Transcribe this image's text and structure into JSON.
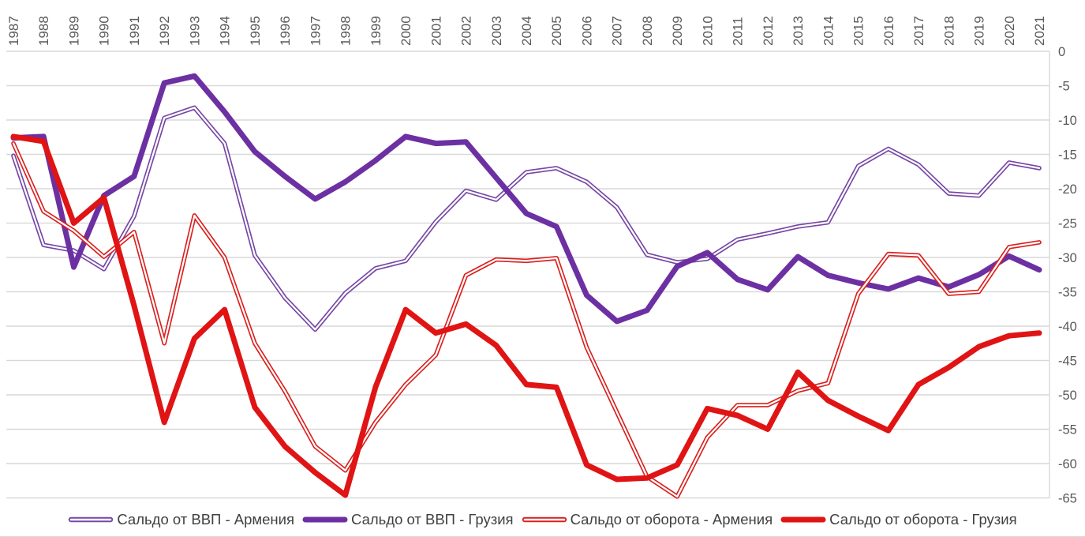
{
  "chart_data": {
    "type": "line",
    "title": "",
    "x": [
      1987,
      1988,
      1989,
      1990,
      1991,
      1992,
      1993,
      1994,
      1995,
      1996,
      1997,
      1998,
      1999,
      2000,
      2001,
      2002,
      2003,
      2004,
      2005,
      2006,
      2007,
      2008,
      2009,
      2010,
      2011,
      2012,
      2013,
      2014,
      2015,
      2016,
      2017,
      2018,
      2019,
      2020,
      2021
    ],
    "series": [
      {
        "name": "Сальдо от ВВП - Армения",
        "color": "#7646A4",
        "line_style": "thin-double",
        "values": [
          -15.2,
          -28.2,
          -29,
          -31.7,
          -24,
          -9.7,
          -8.2,
          -13.4,
          -29.7,
          -35.9,
          -40.5,
          -35.2,
          -31.6,
          -30.5,
          -24.8,
          -20.3,
          -21.6,
          -17.6,
          -17,
          -19,
          -22.7,
          -29.6,
          -30.7,
          -30.2,
          -27.4,
          -26.5,
          -25.5,
          -24.9,
          -16.7,
          -14.2,
          -16.5,
          -20.7,
          -21,
          -16.2,
          -17
        ]
      },
      {
        "name": "Сальдо от ВВП - Грузия",
        "color": "#6C30A3",
        "line_style": "thick",
        "values": [
          -12.6,
          -12.4,
          -31.4,
          -21,
          -18.2,
          -4.6,
          -3.6,
          -8.8,
          -14.6,
          -18.2,
          -21.5,
          -19,
          -15.9,
          -12.4,
          -13.4,
          -13.2,
          -18.4,
          -23.6,
          -25.5,
          -35.5,
          -39.3,
          -37.7,
          -31.3,
          -29.3,
          -33.2,
          -34.7,
          -29.9,
          -32.6,
          -33.7,
          -34.6,
          -33,
          -34.3,
          -32.5,
          -29.8,
          -31.8
        ]
      },
      {
        "name": "Сальдо от оборота - Армения",
        "color": "#D9201E",
        "line_style": "thin-double",
        "values": [
          -13.4,
          -23.3,
          -26.1,
          -29.9,
          -26.3,
          -42.5,
          -23.9,
          -30,
          -42.5,
          -49.5,
          -57.5,
          -61,
          -54,
          -48.5,
          -44.2,
          -32.6,
          -30.3,
          -30.5,
          -30.1,
          -43.1,
          -52.5,
          -61.9,
          -64.8,
          -56.2,
          -51.5,
          -51.5,
          -49.4,
          -48.3,
          -35.3,
          -29.5,
          -29.7,
          -35.3,
          -35,
          -28.5,
          -27.8
        ]
      },
      {
        "name": "Сальдо от оборота - Грузия",
        "color": "#E01414",
        "line_style": "thick",
        "values": [
          -12.4,
          -13.1,
          -25,
          -21.3,
          -37,
          -54,
          -41.8,
          -37.6,
          -51.8,
          -57.5,
          -61.3,
          -64.6,
          -48.9,
          -37.6,
          -41,
          -39.7,
          -42.8,
          -48.5,
          -48.9,
          -60.2,
          -62.3,
          -62.1,
          -60.2,
          -52,
          -53,
          -55,
          -46.7,
          -50.8,
          -53.1,
          -55.2,
          -48.5,
          -46,
          -43,
          -41.4,
          -41
        ]
      }
    ],
    "ylim": [
      -65,
      0
    ],
    "yticks": [
      0,
      -5,
      -10,
      -15,
      -20,
      -25,
      -30,
      -35,
      -40,
      -45,
      -50,
      -55,
      -60,
      -65
    ],
    "xlabel": "",
    "ylabel": "",
    "x_axis_position": "top",
    "y_axis_position": "right",
    "grid": true,
    "legend_position": "bottom",
    "colors": {
      "gridline": "#d9d9d9",
      "tick_label": "#595959",
      "legend_text": "#404040",
      "background": "#ffffff"
    }
  }
}
